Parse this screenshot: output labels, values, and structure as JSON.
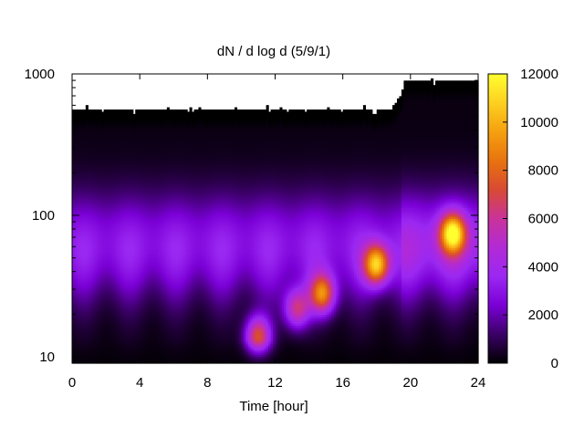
{
  "chart_data": {
    "type": "heatmap",
    "title": "dN / d log d (5/9/1)",
    "xlabel": "Time [hour]",
    "ylabel": "",
    "xlim": [
      0,
      24
    ],
    "ylim": [
      9,
      1000
    ],
    "y_scale": "log",
    "x_ticks": [
      "0",
      "4",
      "8",
      "12",
      "16",
      "20",
      "24"
    ],
    "y_ticks": [
      "10",
      "100",
      "1000"
    ],
    "colorbar": {
      "range": [
        0,
        12000
      ],
      "ticks": [
        "0",
        "2000",
        "4000",
        "6000",
        "8000",
        "10000",
        "12000"
      ],
      "colormap": [
        "#000000",
        "#3a0066",
        "#7a00d6",
        "#9b28f2",
        "#b22ad6",
        "#c9339a",
        "#d84a33",
        "#e8730f",
        "#f5a010",
        "#fdd020",
        "#ffff30"
      ]
    },
    "grid": false,
    "features": [
      {
        "time": 11.0,
        "diameter": 14,
        "value": 7000
      },
      {
        "time": 13.3,
        "diameter": 22,
        "value": 5500
      },
      {
        "time": 14.8,
        "diameter": 28,
        "value": 7500
      },
      {
        "time": 18.0,
        "diameter": 45,
        "value": 8500
      },
      {
        "time": 22.5,
        "diameter": 75,
        "value": 9000
      }
    ]
  }
}
